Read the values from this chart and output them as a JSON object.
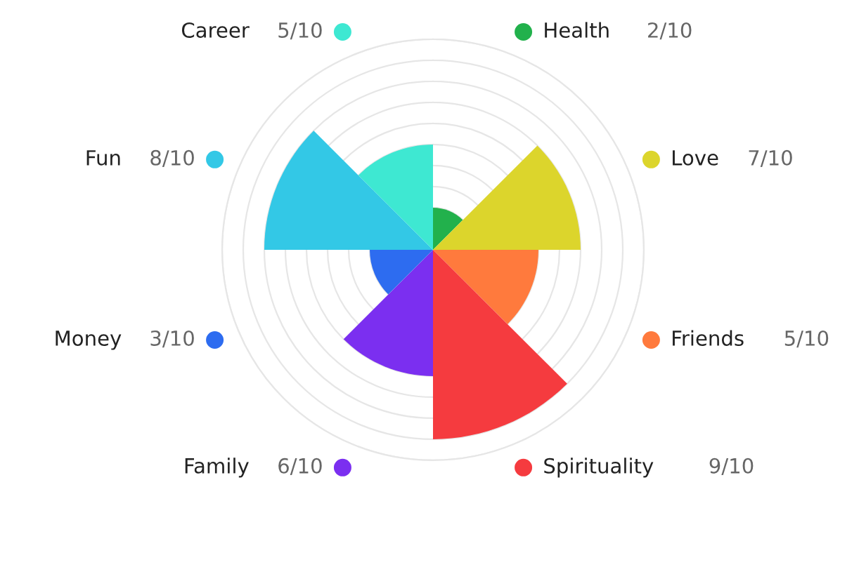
{
  "chart_data": {
    "type": "other",
    "categories": [
      "Health",
      "Love",
      "Friends",
      "Spirituality",
      "Family",
      "Money",
      "Fun",
      "Career"
    ],
    "values": [
      0.2,
      0.7,
      0.5,
      0.9,
      0.6,
      0.3,
      0.8,
      0.5
    ],
    "value_labels": [
      "2/10",
      "7/10",
      "5/10",
      "9/10",
      "6/10",
      "3/10",
      "8/10",
      "5/10"
    ],
    "colors": [
      "#22b14c",
      "#dcd52c",
      "#ff7a3d",
      "#f53b3f",
      "#7b2ff0",
      "#2d6cf0",
      "#33c8e6",
      "#3ee8d2"
    ]
  }
}
